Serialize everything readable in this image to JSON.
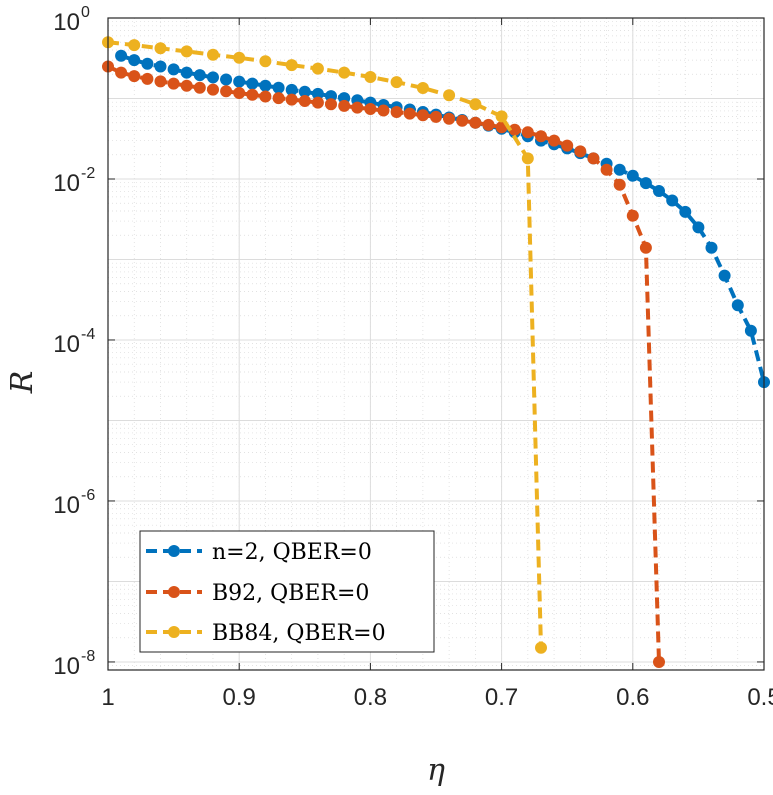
{
  "chart_data": {
    "type": "line",
    "title": "",
    "xlabel": "η",
    "ylabel": "R",
    "x_axis": {
      "scale": "linear",
      "reversed": true,
      "range": [
        1.0,
        0.5
      ],
      "ticks": [
        1.0,
        0.9,
        0.8,
        0.7,
        0.6,
        0.5
      ],
      "tick_labels": [
        "1",
        "0.9",
        "0.8",
        "0.7",
        "0.6",
        "0.5"
      ]
    },
    "y_axis": {
      "scale": "log",
      "range_log10": [
        -8.1,
        0
      ],
      "ticks_log10": [
        0,
        -2,
        -4,
        -6,
        -8
      ],
      "tick_base": "10",
      "tick_exponents": [
        "0",
        "-2",
        "-4",
        "-6",
        "-8"
      ]
    },
    "grid": "on (major and minor)",
    "legend_position": "bottom-left",
    "series": [
      {
        "name": "n=2, QBER=0",
        "color": "#0072BD",
        "line_style": "dashed",
        "marker": "circle",
        "x": [
          0.99,
          0.98,
          0.97,
          0.96,
          0.95,
          0.94,
          0.93,
          0.92,
          0.91,
          0.9,
          0.89,
          0.88,
          0.87,
          0.86,
          0.85,
          0.84,
          0.83,
          0.82,
          0.81,
          0.8,
          0.79,
          0.78,
          0.77,
          0.76,
          0.75,
          0.74,
          0.73,
          0.72,
          0.71,
          0.7,
          0.69,
          0.68,
          0.67,
          0.66,
          0.65,
          0.64,
          0.63,
          0.62,
          0.61,
          0.6,
          0.59,
          0.58,
          0.57,
          0.56,
          0.55,
          0.54,
          0.53,
          0.52,
          0.51,
          0.5
        ],
        "y": [
          0.34,
          0.3,
          0.27,
          0.25,
          0.23,
          0.21,
          0.195,
          0.183,
          0.172,
          0.162,
          0.153,
          0.144,
          0.136,
          0.128,
          0.121,
          0.114,
          0.107,
          0.101,
          0.095,
          0.089,
          0.083,
          0.078,
          0.073,
          0.068,
          0.063,
          0.058,
          0.054,
          0.05,
          0.046,
          0.042,
          0.038,
          0.034,
          0.03,
          0.027,
          0.024,
          0.021,
          0.018,
          0.0155,
          0.013,
          0.011,
          0.0089,
          0.0071,
          0.0054,
          0.0039,
          0.0025,
          0.0014,
          0.00063,
          0.00027,
          0.00013,
          3e-05
        ]
      },
      {
        "name": "B92, QBER=0",
        "color": "#D95319",
        "line_style": "dashed",
        "marker": "circle",
        "x": [
          1.0,
          0.99,
          0.98,
          0.97,
          0.96,
          0.95,
          0.94,
          0.93,
          0.92,
          0.91,
          0.9,
          0.89,
          0.88,
          0.87,
          0.86,
          0.85,
          0.84,
          0.83,
          0.82,
          0.81,
          0.8,
          0.79,
          0.78,
          0.77,
          0.76,
          0.75,
          0.74,
          0.73,
          0.72,
          0.71,
          0.7,
          0.69,
          0.68,
          0.67,
          0.66,
          0.65,
          0.64,
          0.63,
          0.62,
          0.61,
          0.6,
          0.59,
          0.58
        ],
        "y": [
          0.25,
          0.21,
          0.19,
          0.175,
          0.163,
          0.153,
          0.144,
          0.136,
          0.129,
          0.123,
          0.117,
          0.111,
          0.106,
          0.101,
          0.097,
          0.093,
          0.089,
          0.085,
          0.081,
          0.077,
          0.074,
          0.071,
          0.068,
          0.065,
          0.062,
          0.059,
          0.056,
          0.053,
          0.05,
          0.047,
          0.044,
          0.041,
          0.038,
          0.034,
          0.03,
          0.026,
          0.022,
          0.018,
          0.013,
          0.0085,
          0.0035,
          0.0014,
          1e-08
        ]
      },
      {
        "name": "BB84, QBER=0",
        "color": "#EDB120",
        "line_style": "dashed",
        "marker": "circle",
        "x": [
          1.0,
          0.98,
          0.96,
          0.94,
          0.92,
          0.9,
          0.88,
          0.86,
          0.84,
          0.82,
          0.8,
          0.78,
          0.76,
          0.74,
          0.72,
          0.7,
          0.68,
          0.67
        ],
        "y": [
          0.5,
          0.46,
          0.42,
          0.385,
          0.35,
          0.32,
          0.29,
          0.26,
          0.235,
          0.21,
          0.185,
          0.16,
          0.135,
          0.11,
          0.085,
          0.06,
          0.018,
          1.5e-08
        ]
      }
    ]
  }
}
